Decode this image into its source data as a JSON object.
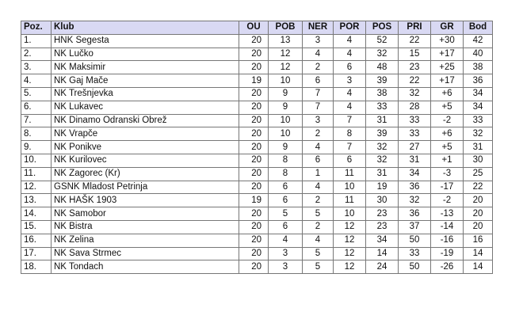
{
  "table": {
    "headers": [
      "Poz.",
      "Klub",
      "OU",
      "POB",
      "NER",
      "POR",
      "POS",
      "PRI",
      "GR",
      "Bod"
    ],
    "rows": [
      [
        "1.",
        "HNK Segesta",
        "20",
        "13",
        "3",
        "4",
        "52",
        "22",
        "+30",
        "42"
      ],
      [
        "2.",
        "NK Lučko",
        "20",
        "12",
        "4",
        "4",
        "32",
        "15",
        "+17",
        "40"
      ],
      [
        "3.",
        "NK Maksimir",
        "20",
        "12",
        "2",
        "6",
        "48",
        "23",
        "+25",
        "38"
      ],
      [
        "4.",
        "NK Gaj Mače",
        "19",
        "10",
        "6",
        "3",
        "39",
        "22",
        "+17",
        "36"
      ],
      [
        "5.",
        "NK Trešnjevka",
        "20",
        "9",
        "7",
        "4",
        "38",
        "32",
        "+6",
        "34"
      ],
      [
        "6.",
        "NK Lukavec",
        "20",
        "9",
        "7",
        "4",
        "33",
        "28",
        "+5",
        "34"
      ],
      [
        "7.",
        "NK Dinamo Odranski Obrež",
        "20",
        "10",
        "3",
        "7",
        "31",
        "33",
        "-2",
        "33"
      ],
      [
        "8.",
        "NK Vrapče",
        "20",
        "10",
        "2",
        "8",
        "39",
        "33",
        "+6",
        "32"
      ],
      [
        "9.",
        "NK Ponikve",
        "20",
        "9",
        "4",
        "7",
        "32",
        "27",
        "+5",
        "31"
      ],
      [
        "10.",
        "NK Kurilovec",
        "20",
        "8",
        "6",
        "6",
        "32",
        "31",
        "+1",
        "30"
      ],
      [
        "11.",
        "NK Zagorec (Kr)",
        "20",
        "8",
        "1",
        "11",
        "31",
        "34",
        "-3",
        "25"
      ],
      [
        "12.",
        "GSNK Mladost Petrinja",
        "20",
        "6",
        "4",
        "10",
        "19",
        "36",
        "-17",
        "22"
      ],
      [
        "13.",
        "NK HAŠK 1903",
        "19",
        "6",
        "2",
        "11",
        "30",
        "32",
        "-2",
        "20"
      ],
      [
        "14.",
        "NK Samobor",
        "20",
        "5",
        "5",
        "10",
        "23",
        "36",
        "-13",
        "20"
      ],
      [
        "15.",
        "NK Bistra",
        "20",
        "6",
        "2",
        "12",
        "23",
        "37",
        "-14",
        "20"
      ],
      [
        "16.",
        "NK Zelina",
        "20",
        "4",
        "4",
        "12",
        "34",
        "50",
        "-16",
        "16"
      ],
      [
        "17.",
        "NK Sava Strmec",
        "20",
        "3",
        "5",
        "12",
        "14",
        "33",
        "-19",
        "14"
      ],
      [
        "18.",
        "NK Tondach",
        "20",
        "3",
        "5",
        "12",
        "24",
        "50",
        "-26",
        "14"
      ]
    ]
  },
  "colors": {
    "header_bg": "#d9d9f3"
  }
}
